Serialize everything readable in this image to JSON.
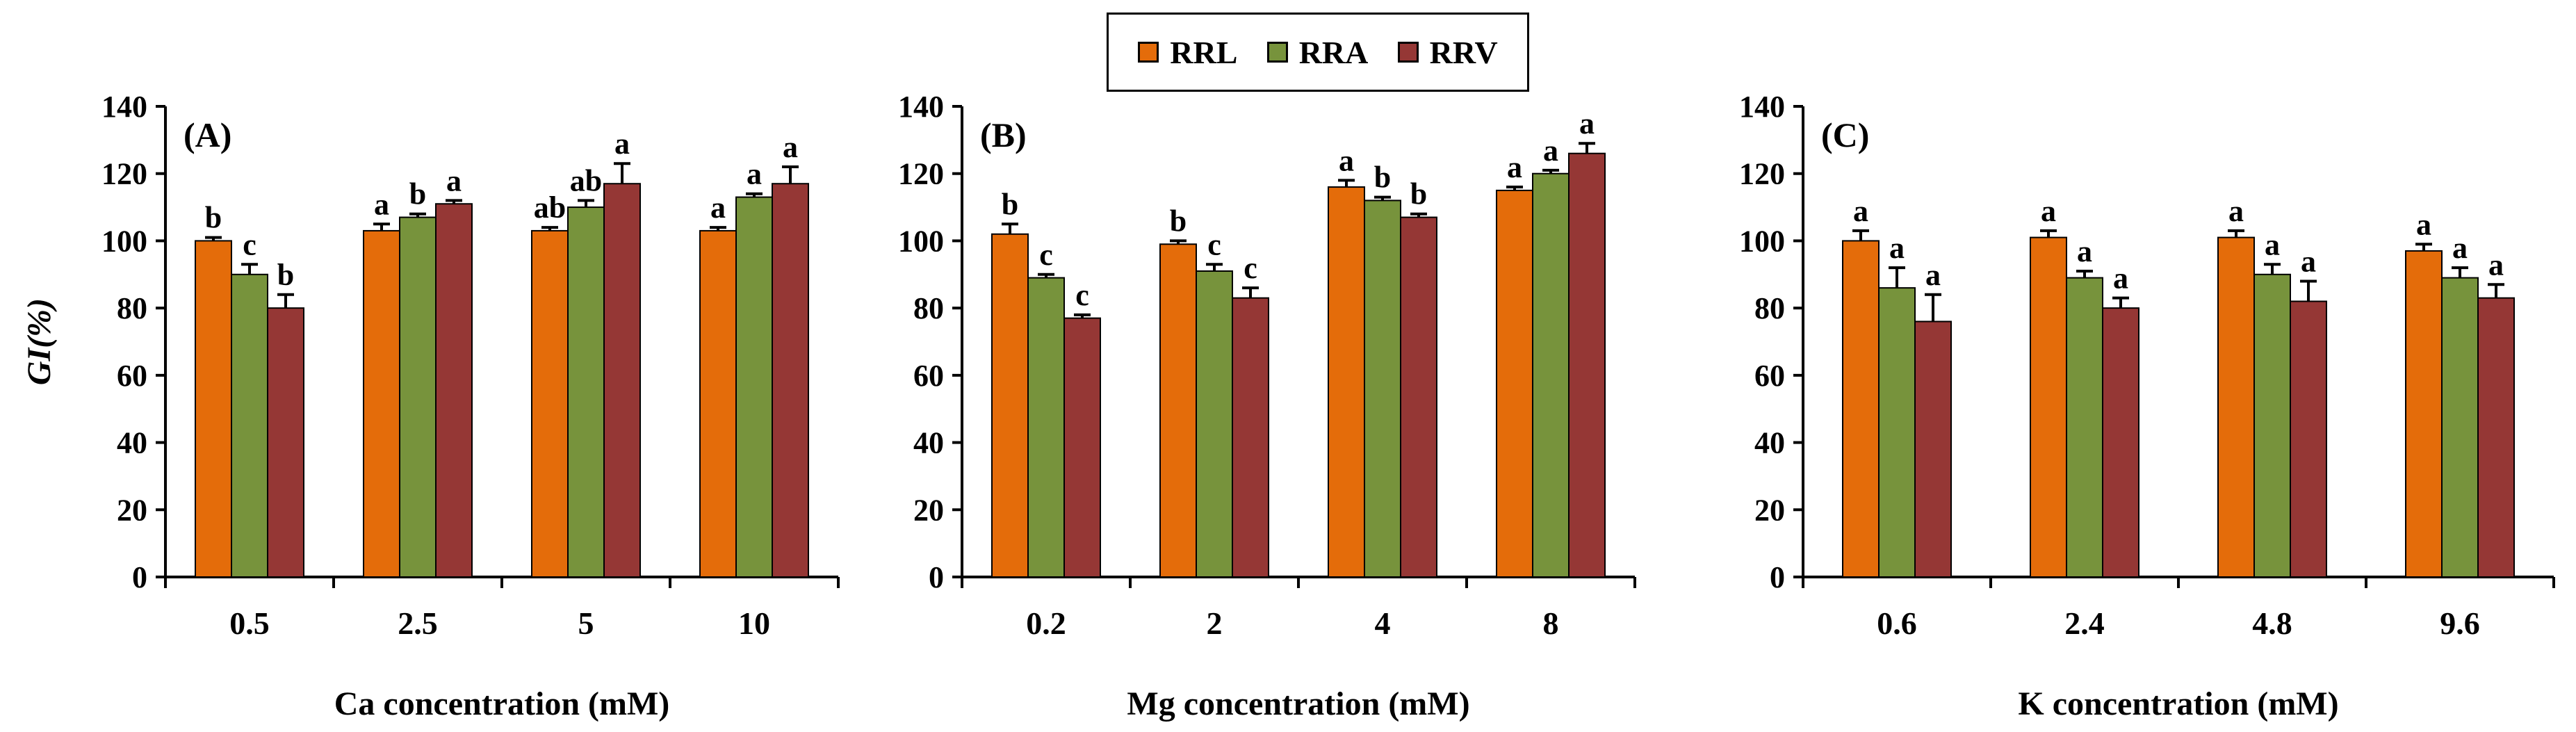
{
  "legend": {
    "items": [
      {
        "label": "RRL",
        "color": "#E46C0A"
      },
      {
        "label": "RRA",
        "color": "#77933C"
      },
      {
        "label": "RRV",
        "color": "#953735"
      }
    ]
  },
  "chart_data": [
    {
      "type": "bar",
      "panel_label": "(A)",
      "xlabel": "Ca concentration (mM)",
      "ylabel": "GI(%)",
      "ylim": [
        0,
        140
      ],
      "yticks": [
        0,
        20,
        40,
        60,
        80,
        100,
        120,
        140
      ],
      "categories": [
        "0.5",
        "2.5",
        "5",
        "10"
      ],
      "series": [
        {
          "name": "RRL",
          "color": "#E46C0A",
          "values": [
            100,
            103,
            103,
            103
          ],
          "errors": [
            1,
            2,
            1,
            1
          ],
          "labels": [
            "b",
            "a",
            "ab",
            "a"
          ]
        },
        {
          "name": "RRA",
          "color": "#77933C",
          "values": [
            90,
            107,
            110,
            113
          ],
          "errors": [
            3,
            1,
            2,
            1
          ],
          "labels": [
            "c",
            "b",
            "ab",
            "a"
          ]
        },
        {
          "name": "RRV",
          "color": "#953735",
          "values": [
            80,
            111,
            117,
            117
          ],
          "errors": [
            4,
            1,
            6,
            5
          ],
          "labels": [
            "b",
            "a",
            "a",
            "a"
          ]
        }
      ]
    },
    {
      "type": "bar",
      "panel_label": "(B)",
      "xlabel": "Mg concentration (mM)",
      "ylabel": "",
      "ylim": [
        0,
        140
      ],
      "yticks": [
        0,
        20,
        40,
        60,
        80,
        100,
        120,
        140
      ],
      "categories": [
        "0.2",
        "2",
        "4",
        "8"
      ],
      "series": [
        {
          "name": "RRL",
          "color": "#E46C0A",
          "values": [
            102,
            99,
            116,
            115
          ],
          "errors": [
            3,
            1,
            2,
            1
          ],
          "labels": [
            "b",
            "b",
            "a",
            "a"
          ]
        },
        {
          "name": "RRA",
          "color": "#77933C",
          "values": [
            89,
            91,
            112,
            120
          ],
          "errors": [
            1,
            2,
            1,
            1
          ],
          "labels": [
            "c",
            "c",
            "b",
            "a"
          ]
        },
        {
          "name": "RRV",
          "color": "#953735",
          "values": [
            77,
            83,
            107,
            126
          ],
          "errors": [
            1,
            3,
            1,
            3
          ],
          "labels": [
            "c",
            "c",
            "b",
            "a"
          ]
        }
      ]
    },
    {
      "type": "bar",
      "panel_label": "(C)",
      "xlabel": "K concentration (mM)",
      "ylabel": "",
      "ylim": [
        0,
        140
      ],
      "yticks": [
        0,
        20,
        40,
        60,
        80,
        100,
        120,
        140
      ],
      "categories": [
        "0.6",
        "2.4",
        "4.8",
        "9.6"
      ],
      "series": [
        {
          "name": "RRL",
          "color": "#E46C0A",
          "values": [
            100,
            101,
            101,
            97
          ],
          "errors": [
            3,
            2,
            2,
            2
          ],
          "labels": [
            "a",
            "a",
            "a",
            "a"
          ]
        },
        {
          "name": "RRA",
          "color": "#77933C",
          "values": [
            86,
            89,
            90,
            89
          ],
          "errors": [
            6,
            2,
            3,
            3
          ],
          "labels": [
            "a",
            "a",
            "a",
            "a"
          ]
        },
        {
          "name": "RRV",
          "color": "#953735",
          "values": [
            76,
            80,
            82,
            83
          ],
          "errors": [
            8,
            3,
            6,
            4
          ],
          "labels": [
            "a",
            "a",
            "a",
            "a"
          ]
        }
      ]
    }
  ]
}
